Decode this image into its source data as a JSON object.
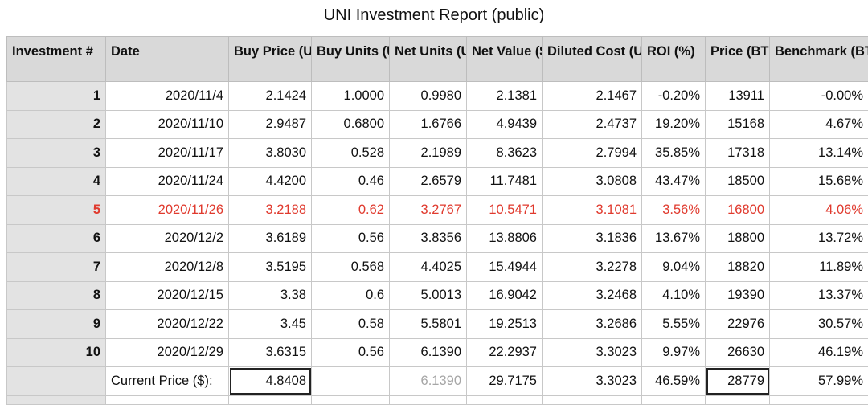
{
  "title": "UNI Investment Report (public)",
  "headers": [
    "Investment #",
    "Date",
    "Buy Price (UNI/$)",
    "Buy Units (UNI)",
    "Net Units (UNI)",
    "Net Value ($)",
    "Diluted Cost (UNI/$)",
    "ROI (%)",
    "Price (BTC/$)",
    "Benchmark (BTC)"
  ],
  "rows": [
    [
      "1",
      "2020/11/4",
      "2.1424",
      "1.0000",
      "0.9980",
      "2.1381",
      "2.1467",
      "-0.20%",
      "13911",
      "-0.00%"
    ],
    [
      "2",
      "2020/11/10",
      "2.9487",
      "0.6800",
      "1.6766",
      "4.9439",
      "2.4737",
      "19.20%",
      "15168",
      "4.67%"
    ],
    [
      "3",
      "2020/11/17",
      "3.8030",
      "0.528",
      "2.1989",
      "8.3623",
      "2.7994",
      "35.85%",
      "17318",
      "13.14%"
    ],
    [
      "4",
      "2020/11/24",
      "4.4200",
      "0.46",
      "2.6579",
      "11.7481",
      "3.0808",
      "43.47%",
      "18500",
      "15.68%"
    ],
    [
      "5",
      "2020/11/26",
      "3.2188",
      "0.62",
      "3.2767",
      "10.5471",
      "3.1081",
      "3.56%",
      "16800",
      "4.06%"
    ],
    [
      "6",
      "2020/12/2",
      "3.6189",
      "0.56",
      "3.8356",
      "13.8806",
      "3.1836",
      "13.67%",
      "18800",
      "13.72%"
    ],
    [
      "7",
      "2020/12/8",
      "3.5195",
      "0.568",
      "4.4025",
      "15.4944",
      "3.2278",
      "9.04%",
      "18820",
      "11.89%"
    ],
    [
      "8",
      "2020/12/15",
      "3.38",
      "0.6",
      "5.0013",
      "16.9042",
      "3.2468",
      "4.10%",
      "19390",
      "13.37%"
    ],
    [
      "9",
      "2020/12/22",
      "3.45",
      "0.58",
      "5.5801",
      "19.2513",
      "3.2686",
      "5.55%",
      "22976",
      "30.57%"
    ],
    [
      "10",
      "2020/12/29",
      "3.6315",
      "0.56",
      "6.1390",
      "22.2937",
      "3.3023",
      "9.97%",
      "26630",
      "46.19%"
    ]
  ],
  "highlight_row": "5",
  "highlight_color": "#e03a2e",
  "current": {
    "label": "Current Price ($):",
    "buy_price": "4.8408",
    "net_units": "6.1390",
    "net_value": "29.7175",
    "diluted_cost": "3.3023",
    "roi": "46.59%",
    "btc_price": "28779",
    "benchmark": "57.99%"
  }
}
